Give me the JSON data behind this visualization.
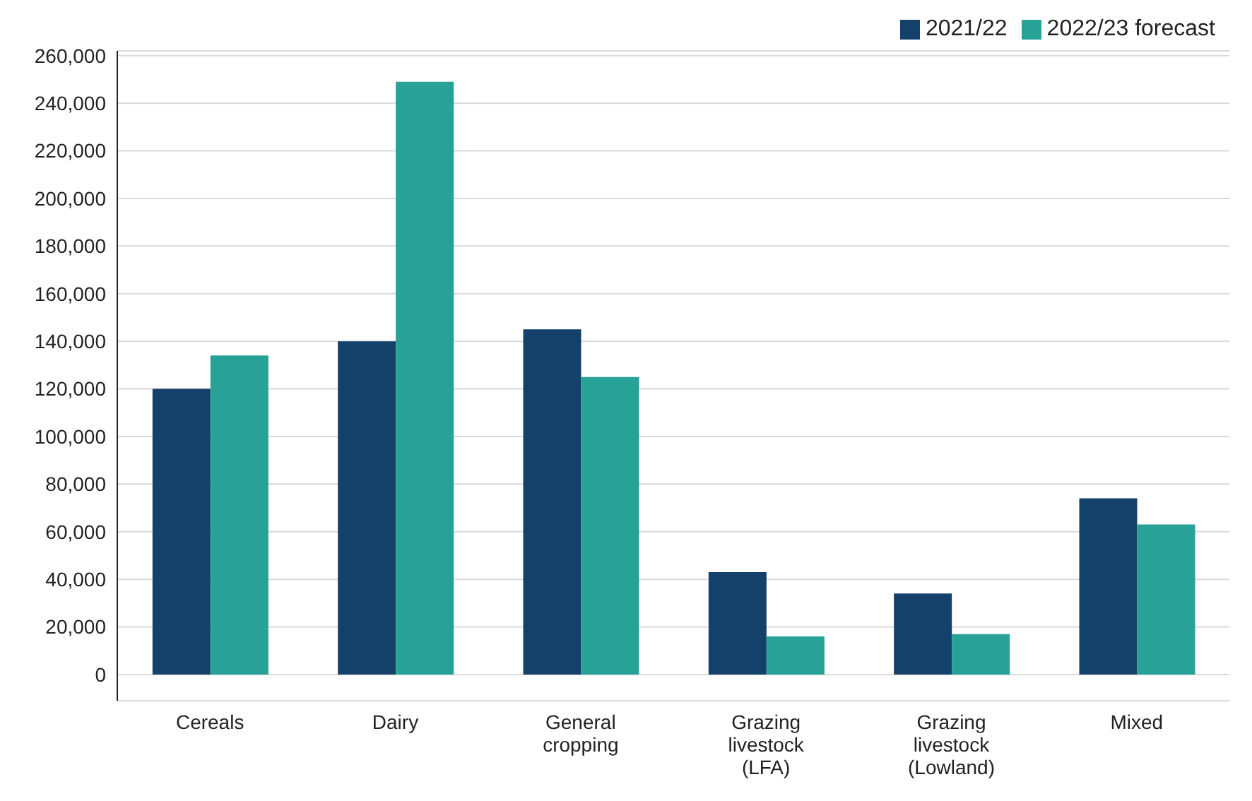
{
  "chart_data": {
    "type": "bar",
    "categories": [
      "Cereals",
      "Dairy",
      "General cropping",
      "Grazing livestock (LFA)",
      "Grazing livestock (Lowland)",
      "Mixed"
    ],
    "series": [
      {
        "name": "2021/22",
        "color": "#134169",
        "values": [
          120000,
          140000,
          145000,
          43000,
          34000,
          74000
        ]
      },
      {
        "name": "2022/23 forecast",
        "color": "#28a197",
        "values": [
          134000,
          249000,
          125000,
          16000,
          17000,
          63000
        ]
      }
    ],
    "ylim": [
      -11000,
      262000
    ],
    "yticks": [
      0,
      {
        "value": 20000,
        "label": "20,000"
      },
      {
        "value": 40000,
        "label": "40,000"
      },
      {
        "value": 60000,
        "label": "60,000"
      },
      {
        "value": 80000,
        "label": "80,000"
      },
      {
        "value": 100000,
        "label": "100,000"
      },
      {
        "value": 120000,
        "label": "120,000"
      },
      {
        "value": 140000,
        "label": "140,000"
      },
      {
        "value": 160000,
        "label": "160,000"
      },
      {
        "value": 180000,
        "label": "180,000"
      },
      {
        "value": 200000,
        "label": "200,000"
      },
      {
        "value": 220000,
        "label": "220,000"
      },
      {
        "value": 240000,
        "label": "240,000"
      },
      {
        "value": 260000,
        "label": "260,000"
      }
    ],
    "grid": "y",
    "legend": "top right"
  }
}
